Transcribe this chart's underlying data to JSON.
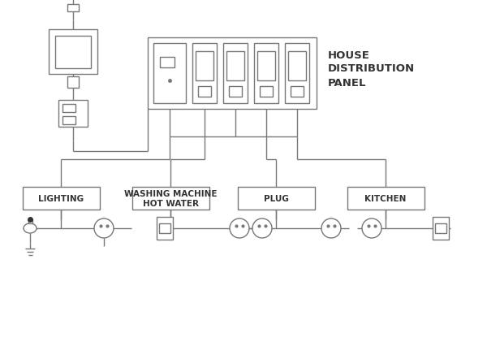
{
  "bg_color": "#ffffff",
  "lc": "#777777",
  "lw": 1.0,
  "panel_label": "HOUSE\nDISTRIBUTION\nPANEL",
  "circuit_labels": [
    "LIGHTING",
    "WASHING MACHINE\nHOT WATER",
    "PLUG",
    "KITCHEN"
  ],
  "font_label": 7.5,
  "font_panel": 9.5,
  "font_device": 6.5
}
